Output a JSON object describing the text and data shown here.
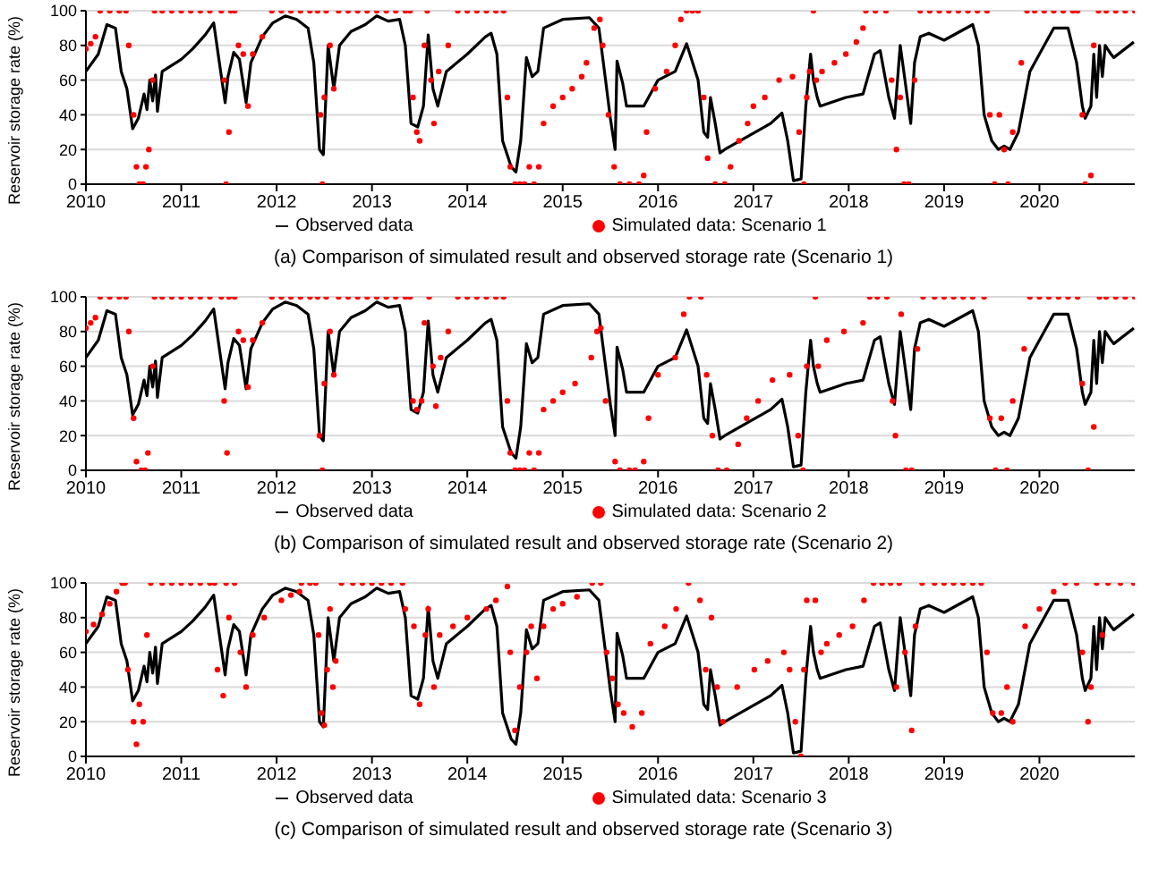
{
  "chart_data": [
    {
      "type": "line",
      "ylabel": "Reservoir storage rate (%)",
      "xlim": [
        2010,
        2021
      ],
      "xticks": [
        2010,
        2011,
        2012,
        2013,
        2014,
        2015,
        2016,
        2017,
        2018,
        2019,
        2020
      ],
      "ylim": [
        0,
        100
      ],
      "yticks": [
        0,
        20,
        40,
        60,
        80,
        100
      ],
      "grid": "y",
      "legend": "bottom",
      "annotations": [
        "(a) Comparison of simulated result and observed storage rate (Scenario 1)"
      ],
      "series": [
        {
          "name": "Observed data",
          "color": "#000000",
          "marker": "none",
          "x": [
            2010.0,
            2010.13,
            2010.22,
            2010.31,
            2010.37,
            2010.43,
            2010.49,
            2010.55,
            2010.61,
            2010.64,
            2010.67,
            2010.7,
            2010.73,
            2010.75,
            2010.8,
            2011.0,
            2011.12,
            2011.25,
            2011.34,
            2011.4,
            2011.46,
            2011.49,
            2011.55,
            2011.61,
            2011.68,
            2011.73,
            2011.85,
            2011.96,
            2012.09,
            2012.21,
            2012.33,
            2012.39,
            2012.45,
            2012.49,
            2012.54,
            2012.6,
            2012.66,
            2012.78,
            2012.93,
            2013.05,
            2013.17,
            2013.29,
            2013.35,
            2013.41,
            2013.48,
            2013.54,
            2013.59,
            2013.64,
            2013.69,
            2013.78,
            2014.0,
            2014.19,
            2014.25,
            2014.31,
            2014.37,
            2014.46,
            2014.51,
            2014.56,
            2014.62,
            2014.68,
            2014.74,
            2014.8,
            2015.0,
            2015.28,
            2015.38,
            2015.45,
            2015.5,
            2015.55,
            2015.57,
            2015.63,
            2015.67,
            2015.85,
            2016.0,
            2016.18,
            2016.3,
            2016.42,
            2016.48,
            2016.52,
            2016.55,
            2016.6,
            2016.65,
            2016.7,
            2017.18,
            2017.3,
            2017.36,
            2017.42,
            2017.5,
            2017.55,
            2017.6,
            2017.63,
            2017.67,
            2017.7,
            2017.97,
            2018.15,
            2018.27,
            2018.33,
            2018.42,
            2018.48,
            2018.54,
            2018.59,
            2018.65,
            2018.69,
            2018.75,
            2018.84,
            2019.0,
            2019.3,
            2019.36,
            2019.42,
            2019.5,
            2019.57,
            2019.63,
            2019.69,
            2019.78,
            2019.9,
            2020.0,
            2020.15,
            2020.3,
            2020.39,
            2020.45,
            2020.48,
            2020.54,
            2020.57,
            2020.6,
            2020.63,
            2020.66,
            2020.69,
            2020.75,
            2020.78,
            2020.99
          ],
          "values": [
            65,
            75,
            92,
            90,
            65,
            55,
            32,
            38,
            52,
            43,
            60,
            48,
            63,
            42,
            65,
            72,
            78,
            86,
            93,
            70,
            47,
            62,
            76,
            72,
            47,
            70,
            85,
            93,
            97,
            95,
            90,
            70,
            20,
            17,
            80,
            55,
            80,
            88,
            92,
            97,
            94,
            95,
            80,
            35,
            33,
            45,
            86,
            55,
            45,
            65,
            75,
            85,
            87,
            75,
            25,
            10,
            7,
            25,
            73,
            62,
            65,
            90,
            95,
            96,
            90,
            60,
            38,
            20,
            71,
            58,
            45,
            45,
            60,
            65,
            81,
            60,
            30,
            27,
            50,
            35,
            18,
            20,
            35,
            41,
            25,
            2,
            3,
            45,
            75,
            60,
            50,
            45,
            50,
            52,
            75,
            77,
            50,
            38,
            80,
            60,
            35,
            70,
            85,
            87,
            83,
            92,
            80,
            40,
            25,
            20,
            22,
            20,
            30,
            65,
            75,
            90,
            90,
            70,
            45,
            38,
            45,
            75,
            50,
            80,
            62,
            80,
            75,
            73,
            82
          ]
        },
        {
          "name": "Simulated data: Scenario 1",
          "type": "scatter",
          "color": "#ff0000",
          "marker": "circle",
          "x": [
            2010.0,
            2010.05,
            2010.1,
            2010.15,
            2010.25,
            2010.35,
            2010.42,
            2010.45,
            2010.5,
            2010.53,
            2010.56,
            2010.6,
            2010.63,
            2010.66,
            2010.7,
            2010.72,
            2010.8,
            2010.9,
            2011.0,
            2011.1,
            2011.2,
            2011.3,
            2011.42,
            2011.45,
            2011.47,
            2011.5,
            2011.52,
            2011.56,
            2011.6,
            2011.65,
            2011.7,
            2011.75,
            2011.85,
            2011.95,
            2012.05,
            2012.15,
            2012.25,
            2012.35,
            2012.43,
            2012.46,
            2012.48,
            2012.5,
            2012.52,
            2012.56,
            2012.6,
            2012.65,
            2012.75,
            2012.85,
            2012.95,
            2013.05,
            2013.15,
            2013.25,
            2013.35,
            2013.4,
            2013.43,
            2013.47,
            2013.5,
            2013.55,
            2013.58,
            2013.62,
            2013.65,
            2013.7,
            2013.8,
            2013.9,
            2014.0,
            2014.1,
            2014.2,
            2014.3,
            2014.38,
            2014.42,
            2014.45,
            2014.5,
            2014.55,
            2014.6,
            2014.65,
            2014.7,
            2014.75,
            2014.8,
            2014.9,
            2015.0,
            2015.1,
            2015.2,
            2015.25,
            2015.33,
            2015.39,
            2015.42,
            2015.48,
            2015.54,
            2015.6,
            2015.7,
            2015.8,
            2015.85,
            2015.88,
            2015.97,
            2016.09,
            2016.18,
            2016.24,
            2016.3,
            2016.36,
            2016.42,
            2016.48,
            2016.52,
            2016.6,
            2016.7,
            2016.76,
            2016.85,
            2016.94,
            2017.0,
            2017.12,
            2017.27,
            2017.41,
            2017.48,
            2017.53,
            2017.56,
            2017.59,
            2017.63,
            2017.66,
            2017.72,
            2017.85,
            2017.97,
            2018.08,
            2018.15,
            2018.18,
            2018.28,
            2018.39,
            2018.45,
            2018.5,
            2018.54,
            2018.58,
            2018.63,
            2018.69,
            2018.75,
            2018.85,
            2018.95,
            2019.05,
            2019.15,
            2019.25,
            2019.35,
            2019.45,
            2019.48,
            2019.53,
            2019.58,
            2019.63,
            2019.67,
            2019.72,
            2019.81,
            2019.87,
            2019.95,
            2020.05,
            2020.15,
            2020.25,
            2020.35,
            2020.4,
            2020.45,
            2020.48,
            2020.54,
            2020.57,
            2020.62,
            2020.7,
            2020.8,
            2020.9,
            2021.0
          ],
          "values": [
            78,
            81,
            85,
            100,
            100,
            100,
            100,
            80,
            40,
            10,
            0,
            0,
            10,
            20,
            60,
            100,
            100,
            100,
            100,
            100,
            100,
            100,
            100,
            60,
            0,
            30,
            100,
            100,
            80,
            75,
            45,
            75,
            85,
            100,
            100,
            100,
            100,
            100,
            100,
            40,
            0,
            50,
            100,
            80,
            55,
            100,
            100,
            100,
            100,
            100,
            100,
            100,
            100,
            100,
            50,
            30,
            25,
            80,
            100,
            60,
            35,
            65,
            80,
            100,
            100,
            100,
            100,
            100,
            100,
            50,
            10,
            0,
            0,
            0,
            10,
            0,
            10,
            35,
            45,
            50,
            55,
            62,
            70,
            90,
            95,
            80,
            40,
            10,
            0,
            0,
            0,
            5,
            30,
            55,
            65,
            80,
            95,
            100,
            100,
            100,
            50,
            15,
            0,
            0,
            10,
            25,
            35,
            45,
            50,
            60,
            62,
            30,
            0,
            50,
            65,
            100,
            60,
            65,
            70,
            75,
            82,
            90,
            100,
            100,
            100,
            60,
            20,
            50,
            0,
            0,
            60,
            100,
            100,
            100,
            100,
            100,
            100,
            100,
            100,
            40,
            0,
            40,
            20,
            0,
            30,
            70,
            100,
            100,
            100,
            100,
            100,
            100,
            100,
            40,
            0,
            5,
            80,
            100,
            100,
            100,
            100,
            100
          ]
        }
      ]
    },
    {
      "type": "line",
      "ylabel": "Reservoir storage rate (%)",
      "xlim": [
        2010,
        2021
      ],
      "xticks": [
        2010,
        2011,
        2012,
        2013,
        2014,
        2015,
        2016,
        2017,
        2018,
        2019,
        2020
      ],
      "ylim": [
        0,
        100
      ],
      "yticks": [
        0,
        20,
        40,
        60,
        80,
        100
      ],
      "grid": "y",
      "legend": "bottom",
      "annotations": [
        "(b) Comparison of simulated result and observed storage rate (Scenario 2)"
      ],
      "series": [
        {
          "name": "Observed data",
          "color": "#000000",
          "marker": "none",
          "x": [
            2010.0,
            2010.13,
            2010.22,
            2010.31,
            2010.37,
            2010.43,
            2010.49,
            2010.55,
            2010.61,
            2010.64,
            2010.67,
            2010.7,
            2010.73,
            2010.75,
            2010.8,
            2011.0,
            2011.12,
            2011.25,
            2011.34,
            2011.4,
            2011.46,
            2011.49,
            2011.55,
            2011.61,
            2011.68,
            2011.73,
            2011.85,
            2011.96,
            2012.09,
            2012.21,
            2012.33,
            2012.39,
            2012.45,
            2012.49,
            2012.54,
            2012.6,
            2012.66,
            2012.78,
            2012.93,
            2013.05,
            2013.17,
            2013.29,
            2013.35,
            2013.41,
            2013.48,
            2013.54,
            2013.59,
            2013.64,
            2013.69,
            2013.78,
            2014.0,
            2014.19,
            2014.25,
            2014.31,
            2014.37,
            2014.46,
            2014.51,
            2014.56,
            2014.62,
            2014.68,
            2014.74,
            2014.8,
            2015.0,
            2015.28,
            2015.38,
            2015.45,
            2015.5,
            2015.55,
            2015.57,
            2015.63,
            2015.67,
            2015.85,
            2016.0,
            2016.18,
            2016.3,
            2016.42,
            2016.48,
            2016.52,
            2016.55,
            2016.6,
            2016.65,
            2016.7,
            2017.18,
            2017.3,
            2017.36,
            2017.42,
            2017.5,
            2017.55,
            2017.6,
            2017.63,
            2017.67,
            2017.7,
            2017.97,
            2018.15,
            2018.27,
            2018.33,
            2018.42,
            2018.48,
            2018.54,
            2018.59,
            2018.65,
            2018.69,
            2018.75,
            2018.84,
            2019.0,
            2019.3,
            2019.36,
            2019.42,
            2019.5,
            2019.57,
            2019.63,
            2019.69,
            2019.78,
            2019.9,
            2020.0,
            2020.15,
            2020.3,
            2020.39,
            2020.45,
            2020.48,
            2020.54,
            2020.57,
            2020.6,
            2020.63,
            2020.66,
            2020.69,
            2020.75,
            2020.78,
            2020.99
          ],
          "values": [
            65,
            75,
            92,
            90,
            65,
            55,
            32,
            38,
            52,
            43,
            60,
            48,
            63,
            42,
            65,
            72,
            78,
            86,
            93,
            70,
            47,
            62,
            76,
            72,
            47,
            70,
            85,
            93,
            97,
            95,
            90,
            70,
            20,
            17,
            80,
            55,
            80,
            88,
            92,
            97,
            94,
            95,
            80,
            35,
            33,
            45,
            86,
            55,
            45,
            65,
            75,
            85,
            87,
            75,
            25,
            10,
            7,
            25,
            73,
            62,
            65,
            90,
            95,
            96,
            90,
            60,
            38,
            20,
            71,
            58,
            45,
            45,
            60,
            65,
            81,
            60,
            30,
            27,
            50,
            35,
            18,
            20,
            35,
            41,
            25,
            2,
            3,
            45,
            75,
            60,
            50,
            45,
            50,
            52,
            75,
            77,
            50,
            38,
            80,
            60,
            35,
            70,
            85,
            87,
            83,
            92,
            80,
            40,
            25,
            20,
            22,
            20,
            30,
            65,
            75,
            90,
            90,
            70,
            45,
            38,
            45,
            75,
            50,
            80,
            62,
            80,
            75,
            73,
            82
          ]
        },
        {
          "name": "Simulated data: Scenario 2",
          "type": "scatter",
          "color": "#ff0000",
          "marker": "circle",
          "x": [
            2010.0,
            2010.05,
            2010.1,
            2010.15,
            2010.25,
            2010.35,
            2010.42,
            2010.45,
            2010.5,
            2010.53,
            2010.58,
            2010.62,
            2010.65,
            2010.7,
            2010.72,
            2010.8,
            2010.9,
            2011.0,
            2011.1,
            2011.2,
            2011.3,
            2011.42,
            2011.45,
            2011.48,
            2011.5,
            2011.56,
            2011.6,
            2011.65,
            2011.7,
            2011.75,
            2011.85,
            2011.95,
            2012.05,
            2012.15,
            2012.25,
            2012.35,
            2012.43,
            2012.45,
            2012.48,
            2012.5,
            2012.52,
            2012.56,
            2012.6,
            2012.65,
            2012.75,
            2012.85,
            2012.95,
            2013.05,
            2013.15,
            2013.25,
            2013.35,
            2013.4,
            2013.43,
            2013.47,
            2013.52,
            2013.55,
            2013.6,
            2013.64,
            2013.67,
            2013.72,
            2013.8,
            2013.9,
            2014.0,
            2014.1,
            2014.2,
            2014.3,
            2014.38,
            2014.42,
            2014.45,
            2014.5,
            2014.55,
            2014.6,
            2014.65,
            2014.7,
            2014.75,
            2014.8,
            2014.9,
            2015.0,
            2015.13,
            2015.3,
            2015.36,
            2015.4,
            2015.45,
            2015.55,
            2015.6,
            2015.7,
            2015.76,
            2015.85,
            2015.9,
            2016.0,
            2016.18,
            2016.27,
            2016.33,
            2016.45,
            2016.51,
            2016.57,
            2016.63,
            2016.72,
            2016.84,
            2016.93,
            2017.05,
            2017.2,
            2017.38,
            2017.47,
            2017.52,
            2017.56,
            2017.65,
            2017.68,
            2017.77,
            2017.95,
            2018.15,
            2018.22,
            2018.3,
            2018.4,
            2018.46,
            2018.49,
            2018.55,
            2018.6,
            2018.66,
            2018.72,
            2018.78,
            2018.9,
            2019.0,
            2019.1,
            2019.2,
            2019.3,
            2019.42,
            2019.48,
            2019.54,
            2019.6,
            2019.66,
            2019.72,
            2019.84,
            2019.9,
            2020.0,
            2020.1,
            2020.2,
            2020.3,
            2020.4,
            2020.45,
            2020.51,
            2020.57,
            2020.63,
            2020.7,
            2020.8,
            2020.9,
            2021.0
          ],
          "values": [
            82,
            85,
            88,
            100,
            100,
            100,
            100,
            80,
            30,
            5,
            0,
            0,
            10,
            60,
            100,
            100,
            100,
            100,
            100,
            100,
            100,
            100,
            40,
            10,
            100,
            100,
            80,
            75,
            48,
            75,
            85,
            100,
            100,
            100,
            100,
            100,
            100,
            20,
            0,
            50,
            100,
            80,
            55,
            100,
            100,
            100,
            100,
            100,
            100,
            100,
            100,
            100,
            40,
            35,
            40,
            85,
            100,
            60,
            37,
            65,
            80,
            100,
            100,
            100,
            100,
            100,
            100,
            40,
            10,
            0,
            0,
            0,
            10,
            0,
            10,
            35,
            40,
            45,
            50,
            65,
            80,
            82,
            40,
            5,
            0,
            0,
            0,
            5,
            30,
            55,
            65,
            90,
            100,
            100,
            55,
            20,
            0,
            0,
            15,
            30,
            40,
            52,
            55,
            20,
            0,
            60,
            100,
            60,
            75,
            80,
            85,
            100,
            100,
            100,
            40,
            20,
            90,
            0,
            0,
            70,
            100,
            100,
            100,
            100,
            100,
            100,
            100,
            30,
            0,
            30,
            0,
            40,
            70,
            100,
            100,
            100,
            100,
            100,
            100,
            50,
            0,
            25,
            100,
            100,
            100,
            100,
            100
          ]
        }
      ]
    },
    {
      "type": "line",
      "ylabel": "Reservoir storage rate (%)",
      "xlim": [
        2010,
        2021
      ],
      "xticks": [
        2010,
        2011,
        2012,
        2013,
        2014,
        2015,
        2016,
        2017,
        2018,
        2019,
        2020
      ],
      "ylim": [
        0,
        100
      ],
      "yticks": [
        0,
        20,
        40,
        60,
        80,
        100
      ],
      "grid": "y",
      "legend": "bottom",
      "annotations": [
        "(c) Comparison of simulated result and observed storage rate (Scenario 3)"
      ],
      "series": [
        {
          "name": "Observed data",
          "color": "#000000",
          "marker": "none",
          "x": [
            2010.0,
            2010.13,
            2010.22,
            2010.31,
            2010.37,
            2010.43,
            2010.49,
            2010.55,
            2010.61,
            2010.64,
            2010.67,
            2010.7,
            2010.73,
            2010.75,
            2010.8,
            2011.0,
            2011.12,
            2011.25,
            2011.34,
            2011.4,
            2011.46,
            2011.49,
            2011.55,
            2011.61,
            2011.68,
            2011.73,
            2011.85,
            2011.96,
            2012.09,
            2012.21,
            2012.33,
            2012.39,
            2012.45,
            2012.49,
            2012.54,
            2012.6,
            2012.66,
            2012.78,
            2012.93,
            2013.05,
            2013.17,
            2013.29,
            2013.35,
            2013.41,
            2013.48,
            2013.54,
            2013.59,
            2013.64,
            2013.69,
            2013.78,
            2014.0,
            2014.19,
            2014.25,
            2014.31,
            2014.37,
            2014.46,
            2014.51,
            2014.56,
            2014.62,
            2014.68,
            2014.74,
            2014.8,
            2015.0,
            2015.28,
            2015.38,
            2015.45,
            2015.5,
            2015.55,
            2015.57,
            2015.63,
            2015.67,
            2015.85,
            2016.0,
            2016.18,
            2016.3,
            2016.42,
            2016.48,
            2016.52,
            2016.55,
            2016.6,
            2016.65,
            2016.7,
            2017.18,
            2017.3,
            2017.36,
            2017.42,
            2017.5,
            2017.55,
            2017.6,
            2017.63,
            2017.67,
            2017.7,
            2017.97,
            2018.15,
            2018.27,
            2018.33,
            2018.42,
            2018.48,
            2018.54,
            2018.59,
            2018.65,
            2018.69,
            2018.75,
            2018.84,
            2019.0,
            2019.3,
            2019.36,
            2019.42,
            2019.5,
            2019.57,
            2019.63,
            2019.69,
            2019.78,
            2019.9,
            2020.0,
            2020.15,
            2020.3,
            2020.39,
            2020.45,
            2020.48,
            2020.54,
            2020.57,
            2020.6,
            2020.63,
            2020.66,
            2020.69,
            2020.75,
            2020.78,
            2020.99
          ],
          "values": [
            65,
            75,
            92,
            90,
            65,
            55,
            32,
            38,
            52,
            43,
            60,
            48,
            63,
            42,
            65,
            72,
            78,
            86,
            93,
            70,
            47,
            62,
            76,
            72,
            47,
            70,
            85,
            93,
            97,
            95,
            90,
            70,
            20,
            17,
            80,
            55,
            80,
            88,
            92,
            97,
            94,
            95,
            80,
            35,
            33,
            45,
            86,
            55,
            45,
            65,
            75,
            85,
            87,
            75,
            25,
            10,
            7,
            25,
            73,
            62,
            65,
            90,
            95,
            96,
            90,
            60,
            38,
            20,
            71,
            58,
            45,
            45,
            60,
            65,
            81,
            60,
            30,
            27,
            50,
            35,
            18,
            20,
            35,
            41,
            25,
            2,
            3,
            45,
            75,
            60,
            50,
            45,
            50,
            52,
            75,
            77,
            50,
            38,
            80,
            60,
            35,
            70,
            85,
            87,
            83,
            92,
            80,
            40,
            25,
            20,
            22,
            20,
            30,
            65,
            75,
            90,
            90,
            70,
            45,
            38,
            45,
            75,
            50,
            80,
            62,
            80,
            75,
            73,
            82
          ]
        },
        {
          "name": "Simulated data: Scenario 3",
          "type": "scatter",
          "color": "#ff0000",
          "marker": "circle",
          "x": [
            2010.0,
            2010.08,
            2010.17,
            2010.25,
            2010.32,
            2010.38,
            2010.41,
            2010.44,
            2010.5,
            2010.53,
            2010.56,
            2010.6,
            2010.64,
            2010.68,
            2010.8,
            2010.9,
            2011.0,
            2011.1,
            2011.2,
            2011.3,
            2011.35,
            2011.38,
            2011.44,
            2011.47,
            2011.5,
            2011.56,
            2011.62,
            2011.68,
            2011.75,
            2011.87,
            2012.05,
            2012.15,
            2012.24,
            2012.26,
            2012.35,
            2012.41,
            2012.44,
            2012.47,
            2012.5,
            2012.53,
            2012.56,
            2012.59,
            2012.62,
            2012.68,
            2012.8,
            2012.9,
            2013.0,
            2013.1,
            2013.2,
            2013.32,
            2013.35,
            2013.44,
            2013.5,
            2013.56,
            2013.59,
            2013.65,
            2013.71,
            2013.85,
            2014.0,
            2014.2,
            2014.3,
            2014.42,
            2014.45,
            2014.5,
            2014.55,
            2014.62,
            2014.67,
            2014.73,
            2014.8,
            2014.9,
            2015.0,
            2015.15,
            2015.31,
            2015.4,
            2015.46,
            2015.52,
            2015.58,
            2015.64,
            2015.73,
            2015.83,
            2015.92,
            2016.07,
            2016.19,
            2016.32,
            2016.44,
            2016.5,
            2016.56,
            2016.62,
            2016.68,
            2016.83,
            2017.01,
            2017.15,
            2017.32,
            2017.38,
            2017.44,
            2017.5,
            2017.53,
            2017.56,
            2017.65,
            2017.71,
            2017.77,
            2017.9,
            2018.04,
            2018.16,
            2018.26,
            2018.35,
            2018.44,
            2018.5,
            2018.53,
            2018.59,
            2018.66,
            2018.7,
            2018.77,
            2018.9,
            2019.0,
            2019.1,
            2019.2,
            2019.3,
            2019.39,
            2019.45,
            2019.51,
            2019.6,
            2019.66,
            2019.72,
            2019.85,
            2020.0,
            2020.15,
            2020.27,
            2020.39,
            2020.45,
            2020.51,
            2020.54,
            2020.6,
            2020.66,
            2020.72,
            2020.85,
            2020.99
          ],
          "values": [
            72,
            76,
            82,
            88,
            95,
            100,
            100,
            50,
            20,
            7,
            30,
            20,
            70,
            100,
            100,
            100,
            100,
            100,
            100,
            100,
            100,
            50,
            35,
            100,
            80,
            100,
            60,
            40,
            70,
            80,
            90,
            93,
            95,
            100,
            100,
            100,
            70,
            25,
            18,
            50,
            85,
            40,
            55,
            100,
            100,
            100,
            100,
            100,
            100,
            100,
            85,
            75,
            30,
            70,
            85,
            40,
            70,
            75,
            80,
            85,
            90,
            98,
            60,
            15,
            40,
            60,
            75,
            45,
            75,
            85,
            88,
            92,
            100,
            100,
            60,
            45,
            30,
            25,
            17,
            25,
            65,
            75,
            85,
            100,
            90,
            50,
            80,
            40,
            20,
            40,
            50,
            55,
            60,
            50,
            20,
            0,
            50,
            90,
            90,
            60,
            65,
            70,
            75,
            90,
            100,
            100,
            100,
            40,
            100,
            60,
            15,
            75,
            100,
            100,
            100,
            100,
            100,
            100,
            100,
            60,
            25,
            25,
            40,
            20,
            75,
            85,
            95,
            100,
            100,
            60,
            20,
            40,
            100,
            70,
            100,
            100,
            100
          ]
        }
      ]
    }
  ]
}
